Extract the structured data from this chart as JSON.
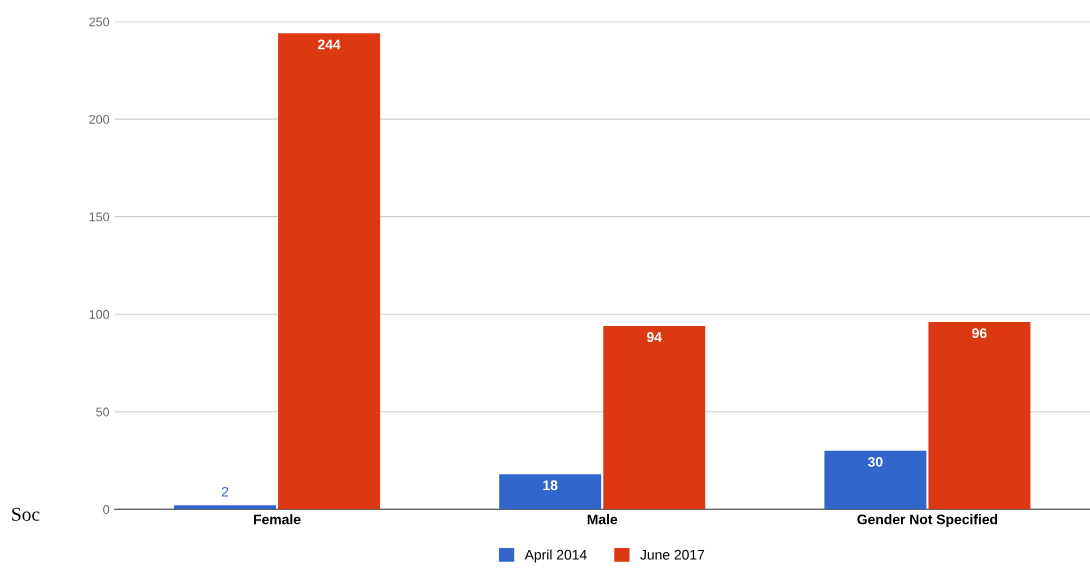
{
  "chart_data": {
    "type": "bar",
    "categories": [
      "Female",
      "Male",
      "Gender Not Specified"
    ],
    "series": [
      {
        "name": "April 2014",
        "color": "#3366cc",
        "values": [
          2,
          18,
          30
        ]
      },
      {
        "name": "June 2017",
        "color": "#dc3912",
        "values": [
          244,
          94,
          96
        ]
      }
    ],
    "ylim": [
      0,
      250
    ],
    "yticks": [
      0,
      50,
      100,
      150,
      200,
      250
    ],
    "grid": "y",
    "legend": "bottom",
    "data_labels": true,
    "annotations": [
      "Soc"
    ]
  }
}
